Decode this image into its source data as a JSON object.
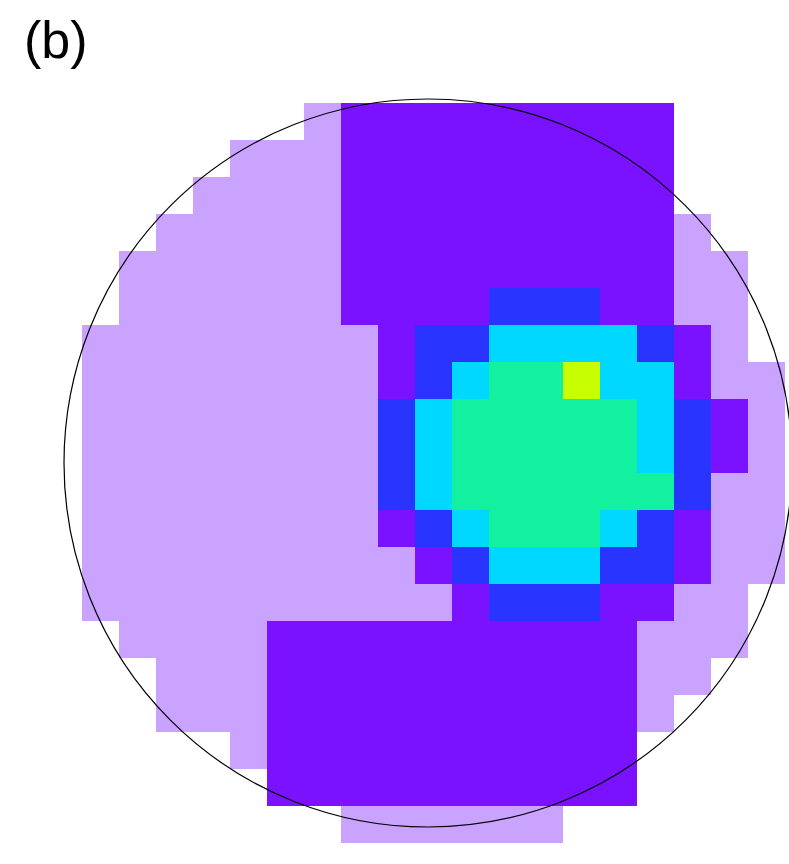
{
  "chart_data": {
    "type": "heatmap",
    "title": "(b)",
    "tick_labels": false,
    "zlim": [
      0,
      6
    ],
    "cells": [
      [
        0,
        0,
        0,
        0,
        0,
        0,
        0,
        1,
        2,
        2,
        2,
        2,
        2,
        2,
        2,
        2,
        2,
        0,
        0,
        0
      ],
      [
        0,
        0,
        0,
        0,
        0,
        1,
        1,
        1,
        2,
        2,
        2,
        2,
        2,
        2,
        2,
        2,
        2,
        0,
        0,
        0
      ],
      [
        0,
        0,
        0,
        0,
        1,
        1,
        1,
        1,
        2,
        2,
        2,
        2,
        2,
        2,
        2,
        2,
        2,
        0,
        0,
        0
      ],
      [
        0,
        0,
        0,
        1,
        1,
        1,
        1,
        1,
        2,
        2,
        2,
        2,
        2,
        2,
        2,
        2,
        2,
        1,
        0,
        0
      ],
      [
        0,
        0,
        1,
        1,
        1,
        1,
        1,
        1,
        2,
        2,
        2,
        2,
        2,
        2,
        2,
        2,
        2,
        1,
        1,
        0
      ],
      [
        0,
        0,
        1,
        1,
        1,
        1,
        1,
        1,
        2,
        2,
        2,
        2,
        3,
        3,
        3,
        2,
        2,
        1,
        1,
        0
      ],
      [
        0,
        1,
        1,
        1,
        1,
        1,
        1,
        1,
        1,
        2,
        3,
        3,
        4,
        4,
        4,
        4,
        3,
        2,
        1,
        0
      ],
      [
        0,
        1,
        1,
        1,
        1,
        1,
        1,
        1,
        1,
        2,
        3,
        4,
        5,
        5,
        6,
        4,
        4,
        2,
        1,
        1
      ],
      [
        0,
        1,
        1,
        1,
        1,
        1,
        1,
        1,
        1,
        3,
        4,
        5,
        5,
        5,
        5,
        5,
        4,
        3,
        2,
        1
      ],
      [
        0,
        1,
        1,
        1,
        1,
        1,
        1,
        1,
        1,
        3,
        4,
        5,
        5,
        5,
        5,
        5,
        4,
        3,
        2,
        1
      ],
      [
        0,
        1,
        1,
        1,
        1,
        1,
        1,
        1,
        1,
        3,
        4,
        5,
        5,
        5,
        5,
        5,
        5,
        3,
        1,
        1
      ],
      [
        0,
        1,
        1,
        1,
        1,
        1,
        1,
        1,
        1,
        2,
        3,
        4,
        5,
        5,
        5,
        4,
        3,
        2,
        1,
        1
      ],
      [
        0,
        1,
        1,
        1,
        1,
        1,
        1,
        1,
        1,
        1,
        2,
        3,
        4,
        4,
        4,
        3,
        3,
        2,
        1,
        1
      ],
      [
        0,
        1,
        1,
        1,
        1,
        1,
        1,
        1,
        1,
        1,
        1,
        2,
        3,
        3,
        3,
        2,
        2,
        1,
        1,
        0
      ],
      [
        0,
        0,
        1,
        1,
        1,
        1,
        2,
        2,
        2,
        2,
        2,
        2,
        2,
        2,
        2,
        2,
        1,
        1,
        1,
        0
      ],
      [
        0,
        0,
        0,
        1,
        1,
        1,
        2,
        2,
        2,
        2,
        2,
        2,
        2,
        2,
        2,
        2,
        1,
        1,
        0,
        0
      ],
      [
        0,
        0,
        0,
        1,
        1,
        1,
        2,
        2,
        2,
        2,
        2,
        2,
        2,
        2,
        2,
        2,
        1,
        0,
        0,
        0
      ],
      [
        0,
        0,
        0,
        0,
        0,
        1,
        2,
        2,
        2,
        2,
        2,
        2,
        2,
        2,
        2,
        2,
        0,
        0,
        0,
        0
      ],
      [
        0,
        0,
        0,
        0,
        0,
        0,
        2,
        2,
        2,
        2,
        2,
        2,
        2,
        2,
        2,
        2,
        0,
        0,
        0,
        0
      ],
      [
        0,
        0,
        0,
        0,
        0,
        0,
        0,
        0,
        1,
        1,
        1,
        1,
        1,
        1,
        0,
        0,
        0,
        0,
        0,
        0
      ]
    ]
  }
}
